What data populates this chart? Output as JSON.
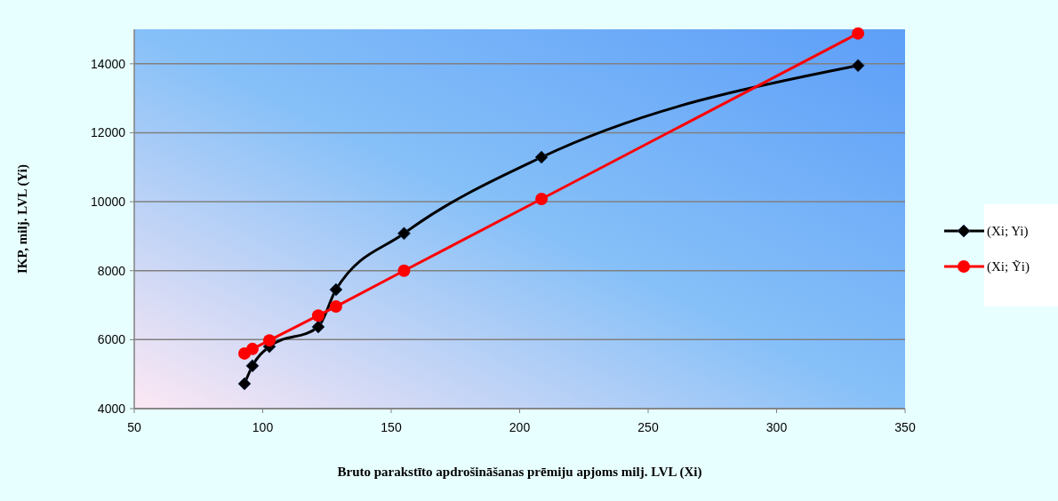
{
  "chart_data": {
    "type": "line",
    "xlabel": "Bruto parakstīto apdrošināšanas prēmiju apjoms milj. LVL (Xi)",
    "ylabel": "IKP, milj. LVL (Yi)",
    "x": [
      92.9,
      96,
      102.6,
      121.6,
      128.5,
      155,
      208.5,
      331.7
    ],
    "series": [
      {
        "name": "(Xi; Yi)",
        "color": "#000000",
        "marker": "diamond",
        "values": [
          4720,
          5240,
          5800,
          6370,
          7450,
          9080,
          11290,
          13950
        ]
      },
      {
        "name": "(Xi; Ỹi)",
        "color": "#ff0000",
        "marker": "circle",
        "values": [
          5600,
          5730,
          5980,
          6700,
          6960,
          8000,
          10080,
          14880
        ]
      }
    ],
    "xlim": [
      50,
      350
    ],
    "xticks": [
      50,
      100,
      150,
      200,
      250,
      300,
      350
    ],
    "ylim": [
      4000,
      15000
    ],
    "yticks": [
      4000,
      6000,
      8000,
      10000,
      12000,
      14000
    ],
    "grid": "y",
    "legend": "right"
  }
}
